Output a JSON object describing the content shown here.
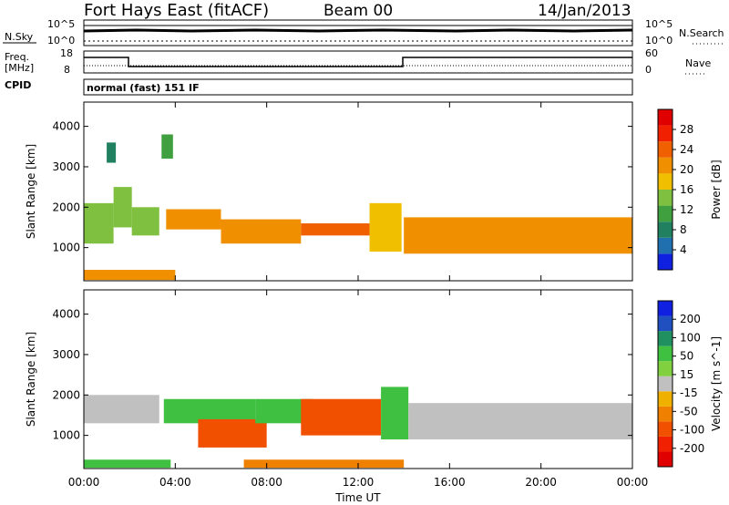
{
  "header": {
    "station": "Fort Hays East (fitACF)",
    "beam": "Beam 00",
    "date": "14/Jan/2013"
  },
  "noise_panel": {
    "left_label": "N.Sky",
    "right_label": "N.Search",
    "left_ticks": [
      "10^5",
      "10^0"
    ],
    "right_ticks": [
      "10^5",
      "10^0"
    ]
  },
  "freq_panel": {
    "left_label_top": "Freq.",
    "left_label_bottom": "[MHz]",
    "left_ticks": [
      "18",
      "8"
    ],
    "right_label": "Nave",
    "right_ticks": [
      "60",
      "0"
    ]
  },
  "cpid": {
    "label": "CPID",
    "program": "normal (fast) 151 IF"
  },
  "colors": {
    "power": [
      "#1020e0",
      "#2070b0",
      "#208060",
      "#40a040",
      "#80c040",
      "#f0c000",
      "#f09000",
      "#f06000",
      "#f02000",
      "#e00000"
    ],
    "velocity_positive": [
      "#1020e0",
      "#2050c0",
      "#209060",
      "#40c040",
      "#80d040"
    ],
    "velocity_ground": "#c0c0c0",
    "velocity_negative": [
      "#f0b000",
      "#f08000",
      "#f05000",
      "#f02000",
      "#e00000"
    ]
  },
  "chart_data": [
    {
      "type": "heatmap",
      "name_printed": "",
      "x": {
        "label": "Time UT",
        "ticks": [
          "00:00",
          "04:00",
          "08:00",
          "12:00",
          "16:00",
          "20:00",
          "00:00"
        ],
        "range_hours": [
          0,
          24
        ]
      },
      "y": {
        "label": "Slant Range [km]",
        "ticks": [
          "1000",
          "2000",
          "3000",
          "4000"
        ],
        "range_km": [
          180,
          4600
        ]
      },
      "colorbar": {
        "label": "Power [dB]",
        "ticks": [
          "4",
          "8",
          "12",
          "16",
          "20",
          "24",
          "28"
        ],
        "range": [
          0,
          30
        ]
      },
      "features": [
        {
          "t_start": 0.0,
          "t_end": 1.3,
          "r_low": 1100,
          "r_high": 2100,
          "value": 12
        },
        {
          "t_start": 1.3,
          "t_end": 2.1,
          "r_low": 1500,
          "r_high": 2500,
          "value": 14
        },
        {
          "t_start": 2.1,
          "t_end": 3.3,
          "r_low": 1300,
          "r_high": 2000,
          "value": 12
        },
        {
          "t_start": 3.6,
          "t_end": 6.0,
          "r_low": 1450,
          "r_high": 1950,
          "value": 18
        },
        {
          "t_start": 6.0,
          "t_end": 9.5,
          "r_low": 1100,
          "r_high": 1700,
          "value": 20
        },
        {
          "t_start": 9.5,
          "t_end": 12.5,
          "r_low": 1300,
          "r_high": 1600,
          "value": 22
        },
        {
          "t_start": 12.5,
          "t_end": 13.9,
          "r_low": 900,
          "r_high": 2100,
          "value": 16
        },
        {
          "t_start": 14.0,
          "t_end": 24.0,
          "r_low": 850,
          "r_high": 1750,
          "value": 20
        },
        {
          "t_start": 0.0,
          "t_end": 4.0,
          "r_low": 200,
          "r_high": 450,
          "value": 18
        },
        {
          "t_start": 1.0,
          "t_end": 1.4,
          "r_low": 3100,
          "r_high": 3600,
          "value": 8
        },
        {
          "t_start": 3.4,
          "t_end": 3.9,
          "r_low": 3200,
          "r_high": 3800,
          "value": 10
        }
      ]
    },
    {
      "type": "heatmap",
      "name_printed": "",
      "x": {
        "label": "Time UT",
        "ticks": [
          "00:00",
          "04:00",
          "08:00",
          "12:00",
          "16:00",
          "20:00",
          "00:00"
        ],
        "range_hours": [
          0,
          24
        ]
      },
      "y": {
        "label": "Slant Range [km]",
        "ticks": [
          "1000",
          "2000",
          "3000",
          "4000"
        ],
        "range_km": [
          180,
          4600
        ]
      },
      "colorbar": {
        "label": "Velocity [m s^-1]",
        "ticks": [
          "200",
          "100",
          "50",
          "15",
          "-15",
          "-50",
          "-100",
          "-200"
        ],
        "range": [
          -250,
          250
        ]
      },
      "features": [
        {
          "t_start": 0.0,
          "t_end": 3.3,
          "r_low": 1300,
          "r_high": 2000,
          "value": 0
        },
        {
          "t_start": 3.5,
          "t_end": 7.5,
          "r_low": 1300,
          "r_high": 1900,
          "value": 30
        },
        {
          "t_start": 5.0,
          "t_end": 8.0,
          "r_low": 700,
          "r_high": 1400,
          "value": -50
        },
        {
          "t_start": 7.5,
          "t_end": 10.0,
          "r_low": 1300,
          "r_high": 1900,
          "value": 40
        },
        {
          "t_start": 9.5,
          "t_end": 13.0,
          "r_low": 1000,
          "r_high": 1900,
          "value": -60
        },
        {
          "t_start": 13.0,
          "t_end": 14.2,
          "r_low": 900,
          "r_high": 2200,
          "value": 30
        },
        {
          "t_start": 14.2,
          "t_end": 24.0,
          "r_low": 900,
          "r_high": 1800,
          "value": 0
        },
        {
          "t_start": 0.0,
          "t_end": 3.8,
          "r_low": 200,
          "r_high": 400,
          "value": 40
        },
        {
          "t_start": 7.0,
          "t_end": 14.0,
          "r_low": 200,
          "r_high": 400,
          "value": -40
        }
      ]
    }
  ]
}
